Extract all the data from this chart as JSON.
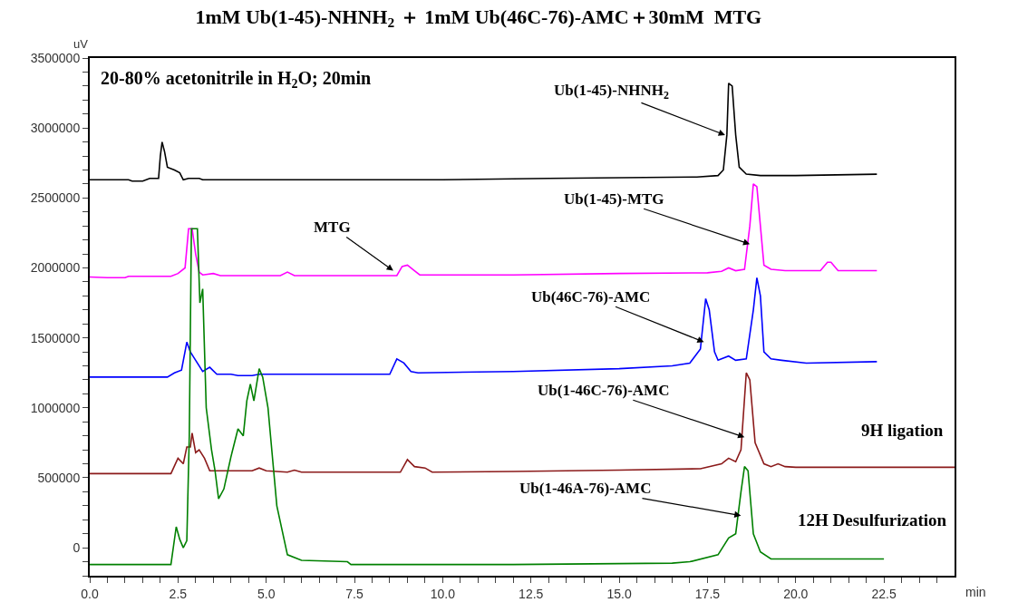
{
  "chart_data": {
    "type": "line",
    "title": "1mM Ub(1-45)-NHNH$_{2}$ ＋ 1mM Ub(46C-76)-AMC＋30mM  MTG",
    "xlabel": "min",
    "ylabel": "uV",
    "xlim": [
      0,
      24.5
    ],
    "ylim": [
      -200000,
      3500000
    ],
    "xticks": [
      {
        "value": 0,
        "label": "0.0"
      },
      {
        "value": 0.5,
        "label": null
      },
      {
        "value": 1,
        "label": null
      },
      {
        "value": 1.5,
        "label": null
      },
      {
        "value": 2,
        "label": null
      },
      2.5,
      {
        "value": 3,
        "label": null
      },
      {
        "value": 3.5,
        "label": null
      },
      {
        "value": 4,
        "label": null
      },
      {
        "value": 4.5,
        "label": null
      },
      {
        "value": 5,
        "label": "5.0"
      },
      {
        "value": 5.5,
        "label": null
      },
      {
        "value": 6,
        "label": null
      },
      {
        "value": 6.5,
        "label": null
      },
      {
        "value": 7,
        "label": null
      },
      7.5,
      {
        "value": 8,
        "label": null
      },
      {
        "value": 8.5,
        "label": null
      },
      {
        "value": 9,
        "label": null
      },
      {
        "value": 9.5,
        "label": null
      },
      {
        "value": 10,
        "label": "10.0"
      },
      {
        "value": 10.5,
        "label": null
      },
      {
        "value": 11,
        "label": null
      },
      {
        "value": 11.5,
        "label": null
      },
      {
        "value": 12,
        "label": null
      },
      12.5,
      {
        "value": 13,
        "label": null
      },
      {
        "value": 13.5,
        "label": null
      },
      {
        "value": 14,
        "label": null
      },
      {
        "value": 14.5,
        "label": null
      },
      {
        "value": 15,
        "label": "15.0"
      },
      {
        "value": 15.5,
        "label": null
      },
      {
        "value": 16,
        "label": null
      },
      {
        "value": 16.5,
        "label": null
      },
      {
        "value": 17,
        "label": null
      },
      17.5,
      {
        "value": 18,
        "label": null
      },
      {
        "value": 18.5,
        "label": null
      },
      {
        "value": 19,
        "label": null
      },
      {
        "value": 19.5,
        "label": null
      },
      {
        "value": 20,
        "label": "20.0"
      },
      {
        "value": 20.5,
        "label": null
      },
      {
        "value": 21,
        "label": null
      },
      {
        "value": 21.5,
        "label": null
      },
      {
        "value": 22,
        "label": null
      },
      22.5,
      {
        "value": 23,
        "label": null
      },
      {
        "value": 23.5,
        "label": null
      },
      {
        "value": 24,
        "label": null
      }
    ],
    "yticks": [
      {
        "value": -200000,
        "label": null
      },
      {
        "value": -100000,
        "label": null
      },
      0,
      {
        "value": 100000,
        "label": null
      },
      {
        "value": 200000,
        "label": null
      },
      {
        "value": 300000,
        "label": null
      },
      {
        "value": 400000,
        "label": null
      },
      500000,
      {
        "value": 600000,
        "label": null
      },
      {
        "value": 700000,
        "label": null
      },
      {
        "value": 800000,
        "label": null
      },
      {
        "value": 900000,
        "label": null
      },
      1000000,
      {
        "value": 1100000,
        "label": null
      },
      {
        "value": 1200000,
        "label": null
      },
      {
        "value": 1300000,
        "label": null
      },
      {
        "value": 1400000,
        "label": null
      },
      1500000,
      {
        "value": 1600000,
        "label": null
      },
      {
        "value": 1700000,
        "label": null
      },
      {
        "value": 1800000,
        "label": null
      },
      {
        "value": 1900000,
        "label": null
      },
      2000000,
      {
        "value": 2100000,
        "label": null
      },
      {
        "value": 2200000,
        "label": null
      },
      {
        "value": 2300000,
        "label": null
      },
      {
        "value": 2400000,
        "label": null
      },
      2500000,
      {
        "value": 2600000,
        "label": null
      },
      {
        "value": 2700000,
        "label": null
      },
      {
        "value": 2800000,
        "label": null
      },
      {
        "value": 2900000,
        "label": null
      },
      3000000,
      {
        "value": 3100000,
        "label": null
      },
      {
        "value": 3200000,
        "label": null
      },
      {
        "value": 3300000,
        "label": null
      },
      {
        "value": 3400000,
        "label": null
      },
      3500000
    ],
    "legend": false,
    "marker": "none",
    "line_style": "solid",
    "series": [
      {
        "color": "#000000",
        "x": [
          0,
          1.1,
          1.2,
          1.5,
          1.7,
          1.95,
          2.0,
          2.05,
          2.12,
          2.2,
          2.4,
          2.55,
          2.65,
          2.8,
          3.1,
          3.2,
          10,
          13,
          17.2,
          17.8,
          17.95,
          18.05,
          18.1,
          18.2,
          18.3,
          18.4,
          18.6,
          19,
          20,
          22.3
        ],
        "values": [
          2630000,
          2630000,
          2620000,
          2620000,
          2640000,
          2640000,
          2800000,
          2900000,
          2830000,
          2720000,
          2700000,
          2680000,
          2630000,
          2640000,
          2640000,
          2630000,
          2630000,
          2640000,
          2650000,
          2660000,
          2700000,
          2950000,
          3320000,
          3300000,
          2950000,
          2720000,
          2670000,
          2660000,
          2660000,
          2670000
        ]
      },
      {
        "color": "#ff00ff",
        "x": [
          0,
          0.5,
          1.0,
          1.1,
          2.3,
          2.5,
          2.7,
          2.8,
          2.9,
          3.0,
          3.1,
          3.2,
          3.5,
          3.7,
          5.4,
          5.6,
          5.8,
          8.7,
          8.85,
          9.0,
          9.2,
          9.35,
          12,
          15,
          17.5,
          17.9,
          18.1,
          18.3,
          18.55,
          18.7,
          18.8,
          18.9,
          19.0,
          19.1,
          19.3,
          19.7,
          20.7,
          20.9,
          21.0,
          21.2,
          22.3
        ],
        "values": [
          1935000,
          1930000,
          1930000,
          1940000,
          1940000,
          1960000,
          2000000,
          2280000,
          2280000,
          2100000,
          1970000,
          1950000,
          1960000,
          1945000,
          1945000,
          1970000,
          1945000,
          1945000,
          2010000,
          2020000,
          1980000,
          1950000,
          1950000,
          1960000,
          1965000,
          1975000,
          2000000,
          1980000,
          1990000,
          2300000,
          2600000,
          2580000,
          2300000,
          2020000,
          1990000,
          1980000,
          1980000,
          2040000,
          2040000,
          1980000,
          1980000
        ]
      },
      {
        "color": "#0000ff",
        "x": [
          0,
          2.2,
          2.4,
          2.6,
          2.75,
          2.85,
          3.0,
          3.2,
          3.4,
          3.6,
          4.0,
          4.2,
          4.6,
          4.8,
          8.5,
          8.7,
          8.9,
          9.1,
          9.3,
          12,
          15,
          16.5,
          17.0,
          17.3,
          17.45,
          17.55,
          17.7,
          17.8,
          18.1,
          18.3,
          18.6,
          18.8,
          18.9,
          19.0,
          19.1,
          19.3,
          19.6,
          20.3,
          22.3
        ],
        "values": [
          1220000,
          1220000,
          1250000,
          1270000,
          1470000,
          1400000,
          1340000,
          1260000,
          1290000,
          1240000,
          1240000,
          1230000,
          1230000,
          1240000,
          1240000,
          1350000,
          1320000,
          1260000,
          1250000,
          1260000,
          1280000,
          1300000,
          1320000,
          1420000,
          1780000,
          1700000,
          1400000,
          1340000,
          1370000,
          1340000,
          1350000,
          1700000,
          1930000,
          1800000,
          1400000,
          1350000,
          1340000,
          1320000,
          1330000
        ]
      },
      {
        "name": "9H ligation",
        "color": "#8b1a1a",
        "x": [
          0,
          2.3,
          2.5,
          2.65,
          2.75,
          2.85,
          2.9,
          3.0,
          3.1,
          3.25,
          3.4,
          4.6,
          4.8,
          5.0,
          5.6,
          5.8,
          6.0,
          8.8,
          9.0,
          9.2,
          9.5,
          9.7,
          12,
          15,
          17.3,
          17.9,
          18.1,
          18.3,
          18.45,
          18.6,
          18.7,
          18.85,
          19.1,
          19.3,
          19.5,
          19.7,
          20,
          24.5
        ],
        "values": [
          530000,
          530000,
          640000,
          600000,
          720000,
          720000,
          820000,
          680000,
          700000,
          640000,
          550000,
          550000,
          570000,
          550000,
          540000,
          555000,
          540000,
          540000,
          630000,
          580000,
          570000,
          540000,
          545000,
          555000,
          565000,
          600000,
          640000,
          615000,
          700000,
          1250000,
          1200000,
          750000,
          600000,
          580000,
          600000,
          580000,
          575000,
          575000
        ]
      },
      {
        "name": "12H Desulfurization",
        "color": "#008000",
        "x": [
          0,
          2.3,
          2.45,
          2.55,
          2.65,
          2.75,
          2.82,
          2.88,
          3.05,
          3.12,
          3.2,
          3.3,
          3.45,
          3.55,
          3.65,
          3.8,
          4.0,
          4.2,
          4.35,
          4.45,
          4.55,
          4.65,
          4.8,
          4.9,
          5.05,
          5.3,
          5.6,
          6.0,
          7.3,
          7.4,
          12,
          16.5,
          17.0,
          17.8,
          18.1,
          18.3,
          18.45,
          18.55,
          18.65,
          18.8,
          19.0,
          19.3,
          22.5
        ],
        "values": [
          -120000,
          -120000,
          150000,
          60000,
          0,
          50000,
          800000,
          2280000,
          2280000,
          1750000,
          1850000,
          1000000,
          700000,
          550000,
          350000,
          420000,
          650000,
          850000,
          800000,
          1050000,
          1170000,
          1050000,
          1280000,
          1220000,
          1000000,
          300000,
          -50000,
          -90000,
          -100000,
          -120000,
          -120000,
          -110000,
          -100000,
          -50000,
          70000,
          100000,
          400000,
          580000,
          550000,
          100000,
          -30000,
          -80000,
          -80000
        ]
      }
    ],
    "annotations": [
      "20-80% acetonitrile in H$_{2}$O; 20min",
      {
        "text": "Ub(1-45)-NHNH$_{2}$",
        "x": 18.0,
        "y": 2950000
      },
      {
        "text": "MTG",
        "x": 8.6,
        "y": 1980000
      },
      {
        "text": "Ub(1-45)-MTG",
        "x": 18.7,
        "y": 2170000
      },
      {
        "text": "Ub(46C-76)-AMC",
        "x": 17.4,
        "y": 1470000
      },
      {
        "text": "Ub(1-46C-76)-AMC",
        "x": 18.55,
        "y": 790000
      },
      {
        "text": "Ub(1-46A-76)-AMC",
        "x": 18.45,
        "y": 230000
      }
    ]
  }
}
